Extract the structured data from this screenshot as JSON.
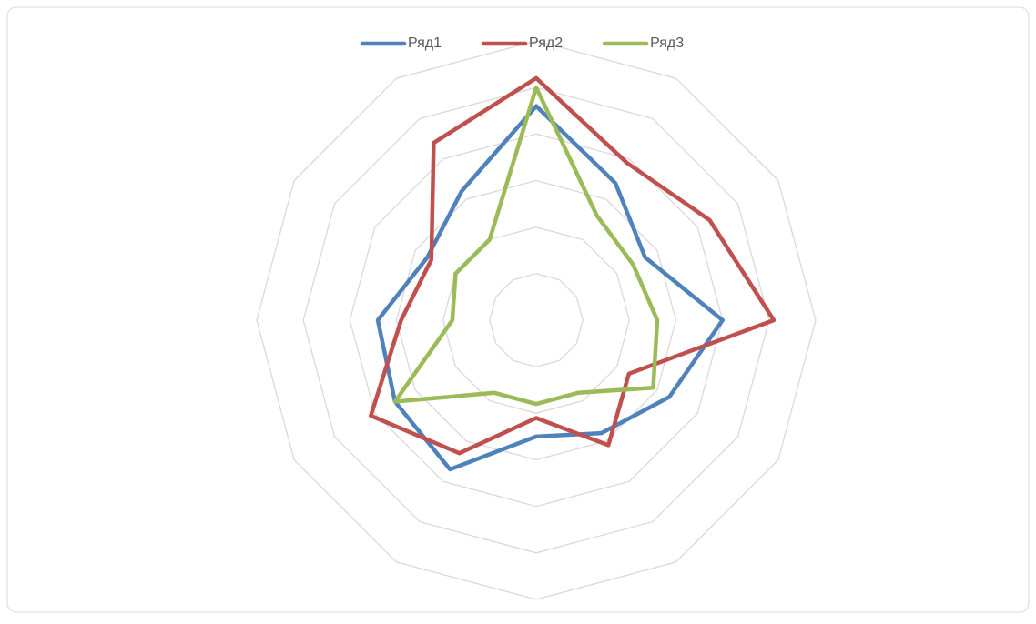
{
  "chart_data": {
    "type": "radar",
    "categories": [
      null,
      null,
      null,
      null,
      null,
      null,
      null,
      null,
      null,
      null,
      null,
      null
    ],
    "series": [
      {
        "name": "Ряд1",
        "color": "#4f81bd",
        "values": [
          4.6,
          3.4,
          2.7,
          4.0,
          3.3,
          2.8,
          2.5,
          3.7,
          3.5,
          3.4,
          2.7,
          3.2
        ]
      },
      {
        "name": "Ряд2",
        "color": "#c0504d",
        "values": [
          5.2,
          3.9,
          4.3,
          5.1,
          2.3,
          3.1,
          2.1,
          3.3,
          4.1,
          2.9,
          2.6,
          4.4
        ]
      },
      {
        "name": "Ряд3",
        "color": "#9bbb59",
        "values": [
          5.0,
          2.6,
          2.4,
          2.6,
          2.9,
          1.8,
          1.8,
          1.8,
          3.5,
          1.8,
          2.0,
          2.0
        ]
      }
    ],
    "ylim": [
      0,
      6
    ],
    "yticks": [
      0,
      1,
      2,
      3,
      4,
      5,
      6
    ],
    "grid": true,
    "legend": "top"
  }
}
